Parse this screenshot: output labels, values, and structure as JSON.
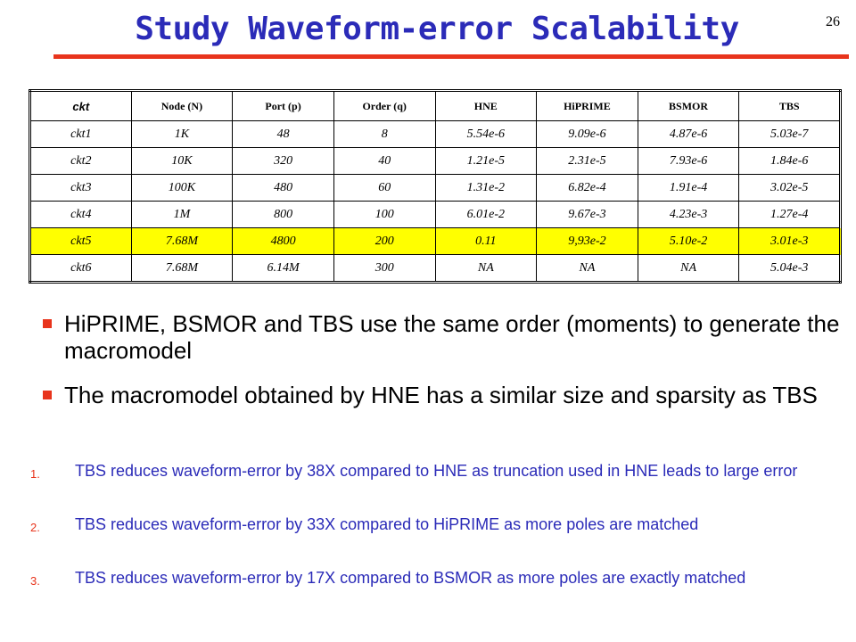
{
  "header": {
    "title": "Study Waveform-error Scalability",
    "page_number": "26"
  },
  "table": {
    "columns": [
      "ckt",
      "Node (N)",
      "Port (p)",
      "Order (q)",
      "HNE",
      "HiPRIME",
      "BSMOR",
      "TBS"
    ],
    "rows": [
      [
        "ckt1",
        "1K",
        "48",
        "8",
        "5.54e-6",
        "9.09e-6",
        "4.87e-6",
        "5.03e-7"
      ],
      [
        "ckt2",
        "10K",
        "320",
        "40",
        "1.21e-5",
        "2.31e-5",
        "7.93e-6",
        "1.84e-6"
      ],
      [
        "ckt3",
        "100K",
        "480",
        "60",
        "1.31e-2",
        "6.82e-4",
        "1.91e-4",
        "3.02e-5"
      ],
      [
        "ckt4",
        "1M",
        "800",
        "100",
        "6.01e-2",
        "9.67e-3",
        "4.23e-3",
        "1.27e-4"
      ],
      [
        "ckt5",
        "7.68M",
        "4800",
        "200",
        "0.11",
        "9,93e-2",
        "5.10e-2",
        "3.01e-3"
      ],
      [
        "ckt6",
        "7.68M",
        "6.14M",
        "300",
        "NA",
        "NA",
        "NA",
        "5.04e-3"
      ]
    ]
  },
  "bullets": [
    "HiPRIME, BSMOR and TBS use the same order (moments) to generate the macromodel",
    "The macromodel obtained by HNE has a similar size and sparsity as TBS"
  ],
  "numbered_items": [
    {
      "marker": "1.",
      "text": "TBS reduces waveform-error by 38X compared to HNE as truncation used in HNE leads to large error"
    },
    {
      "marker": "2.",
      "text": "TBS reduces waveform-error by 33X compared to HiPRIME as more poles are matched"
    },
    {
      "marker": "3.",
      "text": "TBS reduces waveform-error by 17X compared to BSMOR as more poles are exactly matched"
    }
  ]
}
